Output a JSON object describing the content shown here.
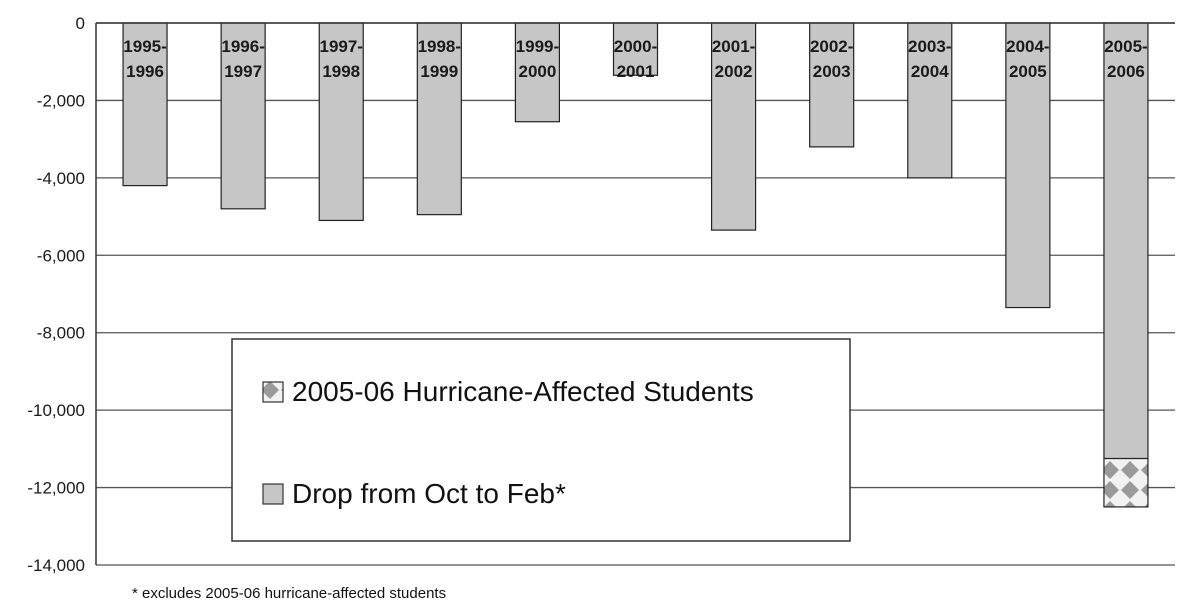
{
  "chart_data": {
    "type": "bar",
    "stacked": true,
    "categories": [
      "1995-1996",
      "1996-1997",
      "1997-1998",
      "1998-1999",
      "1999-2000",
      "2000-2001",
      "2001-2002",
      "2002-2003",
      "2003-2004",
      "2004-2005",
      "2005-2006"
    ],
    "series": [
      {
        "name": "Drop from Oct to Feb*",
        "values": [
          -4200,
          -4800,
          -5100,
          -4950,
          -2550,
          -1350,
          -5350,
          -3200,
          -4000,
          -7350,
          -11250
        ],
        "color": "#c6c6c6",
        "pattern": "solid"
      },
      {
        "name": "2005-06 Hurricane-Affected Students",
        "values": [
          0,
          0,
          0,
          0,
          0,
          0,
          0,
          0,
          0,
          0,
          -1250
        ],
        "color": "#d9d9d9",
        "pattern": "checker"
      }
    ],
    "ylim": [
      -14000,
      0
    ],
    "yticks": [
      0,
      -2000,
      -4000,
      -6000,
      -8000,
      -10000,
      -12000,
      -14000
    ],
    "ytick_labels": [
      "0",
      "-2,000",
      "-4,000",
      "-6,000",
      "-8,000",
      "-10,000",
      "-12,000",
      "-14,000"
    ],
    "grid": true,
    "legend_position": "lower-center",
    "footnote": "* excludes 2005-06 hurricane-affected students"
  }
}
